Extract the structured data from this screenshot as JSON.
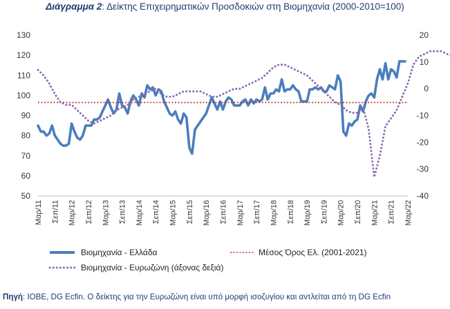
{
  "title": {
    "prefix": "Διάγραμμα 2",
    "text": ": Δείκτης Επιχειρηματικών Προσδοκιών στη Βιομηχανία (2000-2010=100)"
  },
  "source": {
    "prefix": "Πηγή",
    "text": ": IOBE, DG Ecfin. Ο δείκτης για την Ευρωζώνη είναι υπό μορφή ισοζυγίου και αντλείται από τη DG Ecfin"
  },
  "chart_data": {
    "type": "line",
    "title": "Δείκτης Επιχειρηματικών Προσδοκιών στη Βιομηχανία (2000-2010=100)",
    "x_tick_labels": [
      "Μαρ/11",
      "Σεπ/11",
      "Μαρ/12",
      "Σεπ/12",
      "Μαρ/13",
      "Σεπ/13",
      "Μαρ/14",
      "Σεπ/14",
      "Μαρ/15",
      "Σεπ/15",
      "Μαρ/16",
      "Σεπ/16",
      "Μαρ/17",
      "Σεπ/17",
      "Μαρ/18",
      "Σεπ/18",
      "Μαρ/19",
      "Σεπ/19",
      "Μαρ/20",
      "Σεπ/20",
      "Μαρ/21",
      "Σεπ/21",
      "Μαρ/22"
    ],
    "y_left": {
      "min": 50,
      "max": 130,
      "ticks": [
        50,
        60,
        70,
        80,
        90,
        100,
        110,
        120,
        130
      ]
    },
    "y_right": {
      "min": -40,
      "max": 20,
      "ticks": [
        -40,
        -30,
        -20,
        -10,
        0,
        10,
        20
      ]
    },
    "grid": false,
    "legend_position": "bottom",
    "series": [
      {
        "name": "Βιομηχανία  - Ελλάδα",
        "axis": "left",
        "style": "solid",
        "color": "#4a7ebb",
        "start_label": "Μαρ/11",
        "points": [
          [
            0,
            85
          ],
          [
            1,
            82
          ],
          [
            2,
            82
          ],
          [
            3,
            80
          ],
          [
            4,
            81
          ],
          [
            5,
            85
          ],
          [
            6,
            80
          ],
          [
            7,
            78
          ],
          [
            8,
            76
          ],
          [
            9,
            75
          ],
          [
            10,
            75
          ],
          [
            11,
            76
          ],
          [
            12,
            86
          ],
          [
            13,
            82
          ],
          [
            14,
            79
          ],
          [
            15,
            78
          ],
          [
            16,
            80
          ],
          [
            17,
            85
          ],
          [
            18,
            85
          ],
          [
            19,
            85
          ],
          [
            20,
            88
          ],
          [
            21,
            88
          ],
          [
            22,
            89
          ],
          [
            23,
            92
          ],
          [
            24,
            95
          ],
          [
            25,
            98
          ],
          [
            26,
            94
          ],
          [
            27,
            91
          ],
          [
            28,
            93
          ],
          [
            29,
            101
          ],
          [
            30,
            95
          ],
          [
            31,
            94
          ],
          [
            32,
            91
          ],
          [
            33,
            97
          ],
          [
            34,
            100
          ],
          [
            35,
            98
          ],
          [
            36,
            95
          ],
          [
            37,
            101
          ],
          [
            38,
            99
          ],
          [
            39,
            105
          ],
          [
            40,
            103
          ],
          [
            41,
            104
          ],
          [
            42,
            100
          ],
          [
            43,
            103
          ],
          [
            44,
            102
          ],
          [
            45,
            97
          ],
          [
            46,
            94
          ],
          [
            47,
            91
          ],
          [
            48,
            90
          ],
          [
            49,
            92
          ],
          [
            50,
            88
          ],
          [
            51,
            86
          ],
          [
            52,
            91
          ],
          [
            53,
            89
          ],
          [
            54,
            74
          ],
          [
            55,
            71
          ],
          [
            56,
            83
          ],
          [
            57,
            85
          ],
          [
            58,
            87
          ],
          [
            59,
            89
          ],
          [
            60,
            91
          ],
          [
            61,
            95
          ],
          [
            62,
            99
          ],
          [
            63,
            96
          ],
          [
            64,
            93
          ],
          [
            65,
            97
          ],
          [
            66,
            93
          ],
          [
            67,
            97
          ],
          [
            68,
            99
          ],
          [
            69,
            98
          ],
          [
            70,
            95
          ],
          [
            71,
            95
          ],
          [
            72,
            95
          ],
          [
            73,
            97
          ],
          [
            74,
            98
          ],
          [
            75,
            95
          ],
          [
            76,
            98
          ],
          [
            77,
            96
          ],
          [
            78,
            98
          ],
          [
            79,
            97
          ],
          [
            80,
            98
          ],
          [
            81,
            104
          ],
          [
            82,
            98
          ],
          [
            83,
            101
          ],
          [
            84,
            101
          ],
          [
            85,
            103
          ],
          [
            86,
            102
          ],
          [
            87,
            108
          ],
          [
            88,
            102
          ],
          [
            89,
            103
          ],
          [
            90,
            103
          ],
          [
            91,
            105
          ],
          [
            92,
            103
          ],
          [
            93,
            102
          ],
          [
            94,
            97
          ],
          [
            95,
            97
          ],
          [
            96,
            97
          ],
          [
            97,
            103
          ],
          [
            98,
            103
          ],
          [
            99,
            104
          ],
          [
            100,
            103
          ],
          [
            101,
            104
          ],
          [
            102,
            102
          ],
          [
            103,
            102
          ],
          [
            104,
            105
          ],
          [
            105,
            104
          ],
          [
            106,
            103
          ],
          [
            107,
            110
          ],
          [
            108,
            107
          ],
          [
            109,
            82
          ],
          [
            110,
            80
          ],
          [
            111,
            86
          ],
          [
            112,
            85
          ],
          [
            113,
            87
          ],
          [
            114,
            88
          ],
          [
            115,
            95
          ],
          [
            116,
            92
          ],
          [
            117,
            97
          ],
          [
            118,
            100
          ],
          [
            119,
            101
          ],
          [
            120,
            99
          ],
          [
            121,
            108
          ],
          [
            122,
            113
          ],
          [
            123,
            108
          ],
          [
            124,
            116
          ],
          [
            125,
            108
          ],
          [
            126,
            113
          ],
          [
            127,
            112
          ],
          [
            128,
            109
          ],
          [
            129,
            117
          ],
          [
            130,
            117
          ],
          [
            131,
            117
          ]
        ]
      },
      {
        "name": "Μέσος Όρος Ελ. (2001-2021)",
        "axis": "left",
        "style": "dotted",
        "color": "#cc2222",
        "value": 96.5
      },
      {
        "name": "Βιομηχανία - Ευρωζώνη (άξονας δεξιά)",
        "axis": "right",
        "style": "dotted",
        "color": "#8a6bb5",
        "start_label": "Μαρ/11",
        "points": [
          [
            0,
            7
          ],
          [
            2,
            5
          ],
          [
            4,
            2
          ],
          [
            6,
            -2
          ],
          [
            8,
            -5
          ],
          [
            10,
            -6
          ],
          [
            12,
            -6
          ],
          [
            14,
            -8
          ],
          [
            16,
            -10
          ],
          [
            18,
            -12
          ],
          [
            20,
            -13
          ],
          [
            22,
            -12
          ],
          [
            24,
            -11
          ],
          [
            26,
            -10
          ],
          [
            28,
            -8
          ],
          [
            30,
            -7
          ],
          [
            32,
            -6
          ],
          [
            34,
            -4
          ],
          [
            36,
            -3
          ],
          [
            38,
            -2
          ],
          [
            40,
            -1
          ],
          [
            42,
            0
          ],
          [
            44,
            -2
          ],
          [
            46,
            -3
          ],
          [
            48,
            -3
          ],
          [
            50,
            -2
          ],
          [
            52,
            -1
          ],
          [
            54,
            -1
          ],
          [
            56,
            -1
          ],
          [
            58,
            -1
          ],
          [
            60,
            -2
          ],
          [
            62,
            -3
          ],
          [
            64,
            -3
          ],
          [
            66,
            -2
          ],
          [
            68,
            -1
          ],
          [
            70,
            0
          ],
          [
            72,
            0
          ],
          [
            74,
            1
          ],
          [
            76,
            2
          ],
          [
            78,
            3
          ],
          [
            80,
            4
          ],
          [
            82,
            6
          ],
          [
            84,
            8
          ],
          [
            86,
            9
          ],
          [
            88,
            9
          ],
          [
            90,
            8
          ],
          [
            92,
            7
          ],
          [
            94,
            6
          ],
          [
            96,
            5
          ],
          [
            98,
            3
          ],
          [
            100,
            1
          ],
          [
            102,
            -1
          ],
          [
            104,
            -3
          ],
          [
            106,
            -5
          ],
          [
            108,
            -6
          ],
          [
            110,
            -8
          ],
          [
            112,
            -9
          ],
          [
            114,
            -9
          ],
          [
            116,
            -7
          ],
          [
            118,
            -15
          ],
          [
            120,
            -33
          ],
          [
            122,
            -25
          ],
          [
            124,
            -14
          ],
          [
            126,
            -11
          ],
          [
            128,
            -8
          ],
          [
            130,
            -3
          ],
          [
            132,
            2
          ],
          [
            134,
            9
          ],
          [
            136,
            12
          ],
          [
            138,
            13
          ],
          [
            140,
            14
          ],
          [
            142,
            14
          ],
          [
            144,
            14
          ],
          [
            146,
            13
          ],
          [
            148,
            12
          ],
          [
            149,
            11
          ],
          [
            150,
            10
          ]
        ]
      }
    ]
  }
}
